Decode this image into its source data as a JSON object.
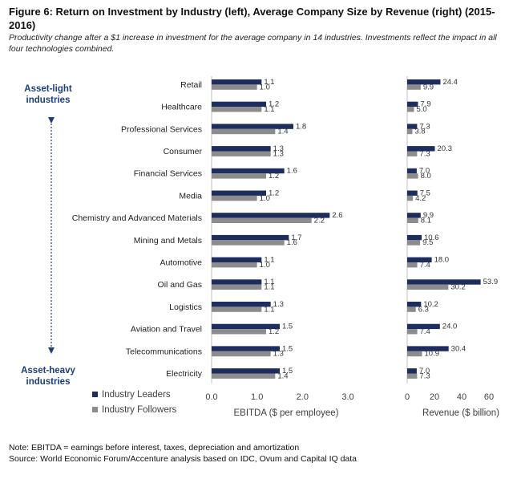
{
  "figure": {
    "title": "Figure 6: Return on Investment by Industry (left), Average Company Size by Revenue (right) (2015-2016)",
    "subtitle": "Productivity change after a $1 increase in investment for the average company in 14 industries. Investments reflect the impact in all four technologies combined.",
    "asset_light": "Asset-light\nindustries",
    "asset_heavy": "Asset-heavy\nindustries",
    "note": "Note: EBITDA = earnings before interest, taxes, depreciation and amortization",
    "source": "Source: World Economic Forum/Accenture analysis based on IDC, Ovum and Capital IQ data"
  },
  "colors": {
    "leaders": "#1c2d5e",
    "followers": "#8c8c8c",
    "accent": "#1d3e7d"
  },
  "chart_data": [
    {
      "type": "bar",
      "orientation": "horizontal",
      "categories": [
        "Retail",
        "Healthcare",
        "Professional Services",
        "Consumer",
        "Financial Services",
        "Media",
        "Chemistry and Advanced Materials",
        "Mining and Metals",
        "Automotive",
        "Oil and Gas",
        "Logistics",
        "Aviation and Travel",
        "Telecommunications",
        "Electricity"
      ],
      "series": [
        {
          "name": "Industry Leaders",
          "values": [
            1.1,
            1.2,
            1.8,
            1.3,
            1.6,
            1.2,
            2.6,
            1.7,
            1.1,
            1.1,
            1.3,
            1.5,
            1.5,
            1.5
          ],
          "labels": [
            "1.1",
            "1.2",
            "1.8",
            "1.3",
            "1.6",
            "1.2",
            "2.6",
            "1.7",
            "1.1",
            "1.1",
            "1.3",
            "1.5",
            "1.5",
            "1.5"
          ]
        },
        {
          "name": "Industry Followers",
          "values": [
            1.0,
            1.1,
            1.4,
            1.3,
            1.2,
            1.0,
            2.2,
            1.6,
            1.0,
            1.1,
            1.1,
            1.2,
            1.3,
            1.4
          ],
          "labels": [
            "1.0",
            "1.1",
            "1.4",
            "1.3",
            "1.2",
            "1.0",
            "2.2",
            "1.6",
            "1.0",
            "1.1",
            "1.1",
            "1.2",
            "1.3",
            "1.4"
          ]
        }
      ],
      "xlabel": "EBITDA ($ per employee)",
      "xlim": [
        0,
        3.0
      ],
      "xticks": [
        "0.0",
        "1.0",
        "2.0",
        "3.0"
      ],
      "grid": false,
      "legend": "bottom-left"
    },
    {
      "type": "bar",
      "orientation": "horizontal",
      "categories": [
        "Retail",
        "Healthcare",
        "Professional Services",
        "Consumer",
        "Financial Services",
        "Media",
        "Chemistry and Advanced Materials",
        "Mining and Metals",
        "Automotive",
        "Oil and Gas",
        "Logistics",
        "Aviation and Travel",
        "Telecommunications",
        "Electricity"
      ],
      "series": [
        {
          "name": "Industry Leaders",
          "values": [
            24.4,
            7.9,
            7.3,
            20.3,
            7.0,
            7.5,
            9.9,
            10.6,
            18.0,
            53.9,
            10.2,
            24.0,
            30.4,
            7.0
          ],
          "labels": [
            "24.4",
            "7.9",
            "7.3",
            "20.3",
            "7.0",
            "7.5",
            "9.9",
            "10.6",
            "18.0",
            "53.9",
            "10.2",
            "24.0",
            "30.4",
            "7.0"
          ]
        },
        {
          "name": "Industry Followers",
          "values": [
            9.9,
            5.0,
            3.8,
            7.3,
            8.0,
            4.2,
            8.1,
            9.5,
            7.4,
            30.2,
            6.3,
            7.4,
            10.9,
            7.3
          ],
          "labels": [
            "9.9",
            "5.0",
            "3.8",
            "7.3",
            "8.0",
            "4.2",
            "8.1",
            "9.5",
            "7.4",
            "30.2",
            "6.3",
            "7.4",
            "10.9",
            "7.3"
          ]
        }
      ],
      "xlabel": "Revenue ($ billion)",
      "xlim": [
        0,
        60
      ],
      "xticks": [
        "0",
        "20",
        "40",
        "60"
      ],
      "grid": false
    }
  ]
}
